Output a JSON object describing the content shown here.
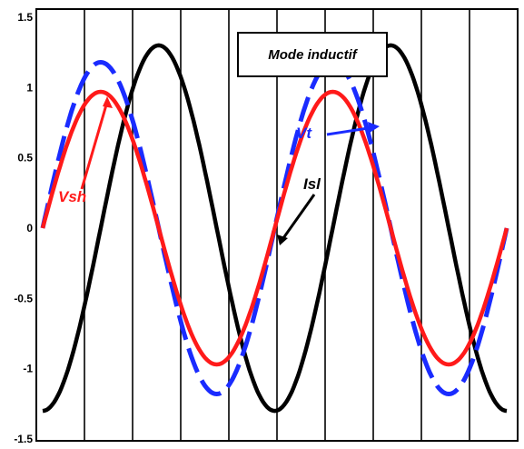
{
  "chart_data": {
    "type": "line",
    "annotation_box": "Mode inductif",
    "ylim": [
      -1.5,
      1.5
    ],
    "y_ticks": [
      "1.5",
      "1",
      "0.5",
      "0",
      "-0.5",
      "-1",
      "-1.5"
    ],
    "y_tick_values": [
      1.5,
      1,
      0.5,
      0,
      -0.5,
      -1,
      -1.5
    ],
    "grid": "vertical lines only",
    "series": [
      {
        "name": "Vsh",
        "color": "#ff1a1a",
        "style": "solid",
        "amplitude": 0.97,
        "x": [
          0,
          0.25,
          0.5,
          0.75,
          1,
          1.25,
          1.5,
          1.75,
          2
        ],
        "y": [
          0,
          0.69,
          0.97,
          0.69,
          0,
          -0.69,
          -0.97,
          -0.69,
          0
        ]
      },
      {
        "name": "Vt",
        "color": "#1a2bff",
        "style": "dashed",
        "amplitude": 1.18,
        "x": [
          0,
          0.25,
          0.5,
          0.75,
          1,
          1.25,
          1.5,
          1.75,
          2
        ],
        "y": [
          0,
          0.83,
          1.18,
          0.83,
          0,
          -0.83,
          -1.18,
          -0.83,
          0
        ]
      },
      {
        "name": "Isl",
        "color": "#000000",
        "style": "solid",
        "amplitude": 1.3,
        "x": [
          0,
          0.25,
          0.5,
          0.75,
          1,
          1.25,
          1.5,
          1.75,
          2
        ],
        "y": [
          -1.3,
          -0.92,
          0,
          0.92,
          1.3,
          0.92,
          0,
          -0.92,
          -1.3
        ]
      }
    ]
  },
  "labels": {
    "vsh": "Vsh",
    "vt": "Vt",
    "isl": "Isl"
  }
}
